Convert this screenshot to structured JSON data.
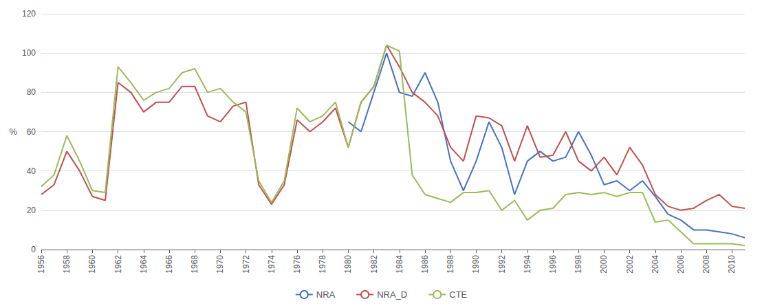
{
  "chart_data": {
    "type": "line",
    "y_label": "%",
    "x": [
      1956,
      1957,
      1958,
      1959,
      1960,
      1961,
      1962,
      1963,
      1964,
      1965,
      1966,
      1967,
      1968,
      1969,
      1970,
      1971,
      1972,
      1973,
      1974,
      1975,
      1976,
      1977,
      1978,
      1979,
      1980,
      1981,
      1982,
      1983,
      1984,
      1985,
      1986,
      1987,
      1988,
      1989,
      1990,
      1991,
      1992,
      1993,
      1994,
      1995,
      1996,
      1997,
      1998,
      1999,
      2000,
      2001,
      2002,
      2003,
      2004,
      2005,
      2006,
      2007,
      2008,
      2009,
      2010,
      2011
    ],
    "series": [
      {
        "name": "NRA",
        "color": "#4472c4",
        "values": [
          null,
          null,
          null,
          null,
          null,
          null,
          null,
          null,
          null,
          null,
          null,
          null,
          null,
          null,
          null,
          null,
          null,
          null,
          null,
          null,
          null,
          null,
          null,
          null,
          65,
          60,
          80,
          100,
          80,
          78,
          90,
          75,
          45,
          30,
          45,
          65,
          52,
          28,
          45,
          50,
          45,
          47,
          60,
          48,
          33,
          35,
          30,
          35,
          27,
          18,
          15,
          10,
          10,
          9,
          8,
          6
        ]
      },
      {
        "name": "NRA_D",
        "color": "#c0504d",
        "values": [
          28,
          33,
          50,
          40,
          27,
          25,
          85,
          80,
          70,
          75,
          75,
          83,
          83,
          68,
          65,
          73,
          75,
          33,
          23,
          33,
          66,
          60,
          65,
          72,
          52,
          75,
          83,
          104,
          93,
          80,
          75,
          68,
          52,
          45,
          68,
          67,
          63,
          45,
          63,
          47,
          48,
          60,
          45,
          40,
          47,
          38,
          52,
          43,
          28,
          22,
          20,
          21,
          25,
          28,
          22,
          21
        ]
      },
      {
        "name": "CTE",
        "color": "#9bbb59",
        "values": [
          32,
          38,
          58,
          45,
          30,
          29,
          93,
          85,
          76,
          80,
          82,
          90,
          92,
          80,
          82,
          75,
          70,
          35,
          24,
          35,
          72,
          65,
          68,
          75,
          52,
          75,
          83,
          104,
          101,
          38,
          28,
          26,
          24,
          29,
          29,
          30,
          20,
          25,
          15,
          20,
          21,
          28,
          29,
          28,
          29,
          27,
          29,
          29,
          14,
          15,
          9,
          3,
          3,
          3,
          3,
          2
        ]
      }
    ],
    "xlim": [
      1956,
      2011
    ],
    "xticks": [
      1956,
      1958,
      1960,
      1962,
      1964,
      1966,
      1968,
      1970,
      1972,
      1974,
      1976,
      1978,
      1980,
      1982,
      1984,
      1986,
      1988,
      1990,
      1992,
      1994,
      1996,
      1998,
      2000,
      2002,
      2004,
      2006,
      2008,
      2010
    ],
    "ylim": [
      0,
      120
    ],
    "yticks": [
      0,
      20,
      40,
      60,
      80,
      100,
      120
    ],
    "grid": "y",
    "legend": "bottom"
  }
}
